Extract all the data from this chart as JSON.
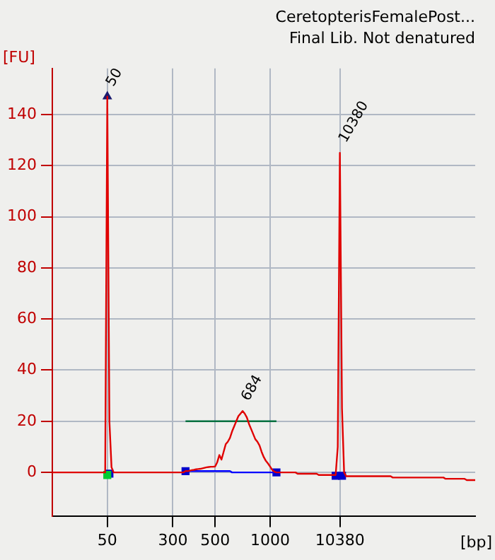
{
  "chart_data": {
    "type": "line",
    "title": "CeretopterisFemalePost...",
    "subtitle": "Final Lib. Not denatured",
    "xlabel": "[bp]",
    "ylabel": "[FU]",
    "annotations": [
      {
        "text": "50",
        "x": "50",
        "y": 147
      },
      {
        "text": "684",
        "y": 24
      },
      {
        "text": "10380",
        "x": "10380",
        "y": 125
      }
    ],
    "categories": [
      null,
      null,
      null,
      null,
      null,
      null,
      null,
      null,
      null,
      null,
      null,
      null,
      null,
      null,
      null,
      null,
      null,
      null,
      null,
      null,
      null,
      null,
      null,
      null,
      null,
      null,
      "50",
      null,
      null,
      null,
      null,
      null,
      null,
      null,
      null,
      null,
      null,
      null,
      null,
      null,
      null,
      null,
      null,
      null,
      null,
      null,
      null,
      null,
      null,
      null,
      null,
      null,
      null,
      null,
      null,
      null,
      null,
      "300",
      null,
      null,
      null,
      null,
      null,
      null,
      null,
      null,
      null,
      null,
      null,
      null,
      null,
      null,
      null,
      null,
      null,
      null,
      null,
      "500",
      null,
      null,
      null,
      null,
      null,
      null,
      null,
      null,
      null,
      null,
      null,
      null,
      null,
      null,
      null,
      null,
      null,
      null,
      null,
      null,
      null,
      null,
      null,
      null,
      null,
      "1000",
      null,
      null,
      null,
      null,
      null,
      null,
      null,
      null,
      null,
      null,
      null,
      null,
      null,
      null,
      null,
      null,
      null,
      null,
      null,
      null,
      null,
      null,
      null,
      null,
      null,
      null,
      null,
      null,
      null,
      null,
      null,
      null,
      "10380",
      null,
      null,
      null,
      null,
      null,
      null,
      null,
      null,
      null,
      null,
      null,
      null,
      null,
      null,
      null,
      null,
      null,
      null,
      null,
      null,
      null,
      null,
      null,
      null,
      null,
      null,
      null,
      null,
      null,
      null,
      null,
      null,
      null,
      null,
      null,
      null,
      null,
      null,
      null,
      null,
      null,
      null,
      null,
      null,
      null,
      null,
      null,
      null,
      null,
      null,
      null,
      null,
      null,
      null,
      null,
      null,
      null,
      null,
      null,
      null,
      null,
      null,
      null,
      null
    ],
    "ylim": [
      -17,
      158
    ],
    "yticks": [
      0,
      20,
      40,
      60,
      80,
      100,
      120,
      140
    ],
    "grid": true,
    "legend": false,
    "marker": "none",
    "line_style": "solid",
    "series": [
      {
        "color": "#e00000",
        "values": [
          0,
          0,
          0,
          0,
          0,
          0,
          0,
          0,
          0,
          0,
          0,
          0,
          0,
          0,
          0,
          0,
          0,
          0,
          0,
          0,
          0,
          0,
          0,
          0,
          0,
          0,
          147,
          20,
          2,
          0,
          0,
          0,
          0,
          0,
          0,
          0,
          0,
          0,
          0,
          0,
          0,
          0,
          0,
          0,
          0,
          0,
          0,
          0,
          0,
          0,
          0,
          0,
          0,
          0,
          0,
          0,
          0,
          0,
          0,
          0,
          0,
          0,
          0,
          0.5,
          0.5,
          0.7,
          0.9,
          1,
          1.2,
          1.3,
          1.4,
          1.6,
          1.8,
          2,
          2.1,
          2.2,
          2.2,
          2.3,
          4,
          6.8,
          5,
          8,
          11,
          12,
          13.5,
          16,
          18,
          20,
          22,
          23,
          24,
          23,
          21.5,
          19,
          17,
          15,
          13,
          12,
          10.5,
          8,
          6,
          4.5,
          3.5,
          2.3,
          1,
          0.3,
          0,
          0,
          0,
          0,
          0,
          0,
          0,
          0,
          0,
          0,
          -0.5,
          -0.5,
          -0.5,
          -0.5,
          -0.5,
          -0.5,
          -0.5,
          -0.5,
          -0.5,
          -0.5,
          -1,
          -1,
          -1,
          -1,
          -1,
          -1,
          -1,
          -1,
          -1,
          10,
          125,
          25,
          0,
          -1.5,
          -1.5,
          -1.5,
          -1.5,
          -1.5,
          -1.5,
          -1.5,
          -1.5,
          -1.5,
          -1.5,
          -1.5,
          -1.5,
          -1.5,
          -1.5,
          -1.5,
          -1.5,
          -1.5,
          -1.5,
          -1.5,
          -1.5,
          -1.5,
          -1.5,
          -2,
          -2,
          -2,
          -2,
          -2,
          -2,
          -2,
          -2,
          -2,
          -2,
          -2,
          -2,
          -2,
          -2,
          -2,
          -2,
          -2,
          -2,
          -2,
          -2,
          -2,
          -2,
          -2,
          -2,
          -2,
          -2.5,
          -2.5,
          -2.5,
          -2.5,
          -2.5,
          -2.5,
          -2.5,
          -2.5,
          -2.5,
          -2.5,
          -3,
          -3,
          -3,
          -3,
          -3
        ]
      },
      {
        "color": "#007040",
        "values": [
          null,
          null,
          null,
          null,
          null,
          null,
          null,
          null,
          null,
          null,
          null,
          null,
          null,
          null,
          null,
          null,
          null,
          null,
          null,
          null,
          null,
          null,
          null,
          null,
          null,
          null,
          null,
          null,
          null,
          null,
          null,
          null,
          null,
          null,
          null,
          null,
          null,
          null,
          null,
          null,
          null,
          null,
          null,
          null,
          null,
          null,
          null,
          null,
          null,
          null,
          null,
          null,
          null,
          null,
          null,
          null,
          null,
          null,
          null,
          null,
          null,
          null,
          null,
          20,
          20,
          20,
          20,
          20,
          20,
          20,
          20,
          20,
          20,
          20,
          20,
          20,
          20,
          20,
          20,
          20,
          20,
          20,
          20,
          20,
          20,
          20,
          20,
          20,
          20,
          20,
          20,
          20,
          20,
          20,
          20,
          20,
          20,
          20,
          20,
          20,
          20,
          20,
          20,
          20,
          20,
          20,
          20,
          null,
          null,
          null,
          null,
          null,
          null,
          null,
          null,
          null,
          null,
          null,
          null,
          null,
          null,
          null,
          null,
          null,
          null,
          null,
          null,
          null,
          null,
          null,
          null,
          null,
          null,
          null,
          null,
          null,
          null,
          null,
          null,
          null,
          null,
          null,
          null,
          null,
          null,
          null,
          null,
          null,
          null,
          null,
          null,
          null,
          null,
          null,
          null,
          null,
          null,
          null,
          null,
          null,
          null,
          null,
          null,
          null,
          null,
          null,
          null,
          null,
          null,
          null,
          null,
          null,
          null,
          null,
          null,
          null,
          null,
          null,
          null,
          null,
          null,
          null,
          null,
          null,
          null,
          null,
          null,
          null,
          null,
          null,
          null,
          null,
          null,
          null,
          null,
          null,
          null,
          null,
          null,
          null,
          null
        ]
      },
      {
        "color": "#0000ff",
        "values": [
          null,
          null,
          null,
          null,
          null,
          null,
          null,
          null,
          null,
          null,
          null,
          null,
          null,
          null,
          null,
          null,
          null,
          null,
          null,
          null,
          null,
          null,
          null,
          null,
          null,
          null,
          null,
          null,
          null,
          null,
          null,
          null,
          null,
          null,
          null,
          null,
          null,
          null,
          null,
          null,
          null,
          null,
          null,
          null,
          null,
          null,
          null,
          null,
          null,
          null,
          null,
          null,
          null,
          null,
          null,
          null,
          null,
          null,
          null,
          null,
          null,
          null,
          null,
          0.5,
          0.5,
          0.5,
          0.5,
          0.5,
          0.5,
          0.5,
          0.5,
          0.5,
          0.5,
          0.5,
          0.5,
          0.5,
          0.5,
          0.5,
          0.5,
          0.5,
          0.5,
          0.5,
          0.5,
          0.5,
          0.5,
          0,
          0,
          0,
          0,
          0,
          0,
          0,
          0,
          0,
          0,
          0,
          0,
          0,
          0,
          0,
          0,
          0,
          0,
          0,
          0,
          0,
          0,
          null,
          null,
          null,
          null,
          null,
          null,
          null,
          null,
          null,
          null,
          null,
          null,
          null,
          null,
          null,
          null,
          null,
          null,
          null,
          null,
          null,
          null,
          null,
          null,
          null,
          null,
          null,
          null,
          null,
          null,
          null,
          null,
          null,
          null,
          null,
          null,
          null,
          null,
          null,
          null,
          null,
          null,
          null,
          null,
          null,
          null,
          null,
          null,
          null,
          null,
          null,
          null,
          null,
          null,
          null,
          null,
          null,
          null,
          null,
          null,
          null,
          null,
          null,
          null,
          null,
          null,
          null,
          null,
          null,
          null,
          null,
          null,
          null,
          null,
          null,
          null,
          null,
          null,
          null,
          null,
          null,
          null,
          null,
          null,
          null,
          null,
          null,
          null,
          null,
          null,
          null,
          null,
          null,
          null
        ]
      },
      {
        "type": "scatter",
        "marker": "square",
        "color": "#00cc33",
        "values": [
          null,
          null,
          null,
          null,
          null,
          null,
          null,
          null,
          null,
          null,
          null,
          null,
          null,
          null,
          null,
          null,
          null,
          null,
          null,
          null,
          null,
          null,
          null,
          null,
          null,
          null,
          -1,
          null,
          null,
          null,
          null,
          null,
          null,
          null,
          null,
          null,
          null,
          null,
          null,
          null,
          null,
          null,
          null,
          null,
          null,
          null,
          null,
          null,
          null,
          null,
          null,
          null,
          null,
          null,
          null,
          null,
          null,
          null,
          null,
          null,
          null,
          null,
          null,
          null,
          null,
          null,
          null,
          null,
          null,
          null,
          null,
          null,
          null,
          null,
          null,
          null,
          null,
          null,
          null,
          null,
          null,
          null,
          null,
          null,
          null,
          null,
          null,
          null,
          null,
          null,
          null,
          null,
          null,
          null,
          null,
          null,
          null,
          null,
          null,
          null,
          null,
          null,
          null,
          null,
          null,
          null,
          null,
          null,
          null,
          null,
          null,
          null,
          null,
          null,
          null,
          null,
          null,
          null,
          null,
          null,
          null,
          null,
          null,
          null,
          null,
          null,
          null,
          null,
          null,
          null,
          null,
          null,
          null,
          null,
          null,
          null,
          null,
          null,
          null,
          null,
          null,
          null,
          null,
          null,
          null,
          null,
          null,
          null,
          null,
          null,
          null,
          null,
          null,
          null,
          null,
          null,
          null,
          null,
          null,
          null,
          null,
          null,
          null,
          null,
          null,
          null,
          null,
          null,
          null,
          null,
          null,
          null,
          null,
          null,
          null,
          null,
          null,
          null,
          null,
          null,
          null,
          null,
          null,
          null,
          null,
          null,
          null,
          null,
          null,
          null,
          null,
          null,
          null,
          null,
          null,
          null,
          null,
          null,
          null,
          null,
          null
        ]
      },
      {
        "type": "scatter",
        "marker": "square",
        "color": "#0000cc",
        "values": [
          null,
          null,
          null,
          null,
          null,
          null,
          null,
          null,
          null,
          null,
          null,
          null,
          null,
          null,
          null,
          null,
          null,
          null,
          null,
          null,
          null,
          null,
          null,
          null,
          null,
          null,
          null,
          -0.5,
          null,
          null,
          null,
          null,
          null,
          null,
          null,
          null,
          null,
          null,
          null,
          null,
          null,
          null,
          null,
          null,
          null,
          null,
          null,
          null,
          null,
          null,
          null,
          null,
          null,
          null,
          null,
          null,
          null,
          null,
          null,
          null,
          null,
          null,
          null,
          0.5,
          null,
          null,
          null,
          null,
          null,
          null,
          null,
          null,
          null,
          null,
          null,
          null,
          null,
          null,
          null,
          null,
          null,
          null,
          null,
          null,
          null,
          null,
          null,
          null,
          null,
          null,
          null,
          null,
          null,
          null,
          null,
          null,
          null,
          null,
          null,
          null,
          null,
          null,
          null,
          null,
          null,
          null,
          0,
          null,
          null,
          null,
          null,
          null,
          null,
          null,
          null,
          null,
          null,
          null,
          null,
          null,
          null,
          null,
          null,
          null,
          null,
          null,
          null,
          null,
          null,
          null,
          null,
          null,
          null,
          null,
          -1.3,
          null,
          null,
          -1.3,
          null,
          null,
          null,
          null,
          null,
          null,
          null,
          null,
          null,
          null,
          null,
          null,
          null,
          null,
          null,
          null,
          null,
          null,
          null,
          null,
          null,
          null,
          null,
          null,
          null,
          null,
          null,
          null,
          null,
          null,
          null,
          null,
          null,
          null,
          null,
          null,
          null,
          null,
          null,
          null,
          null,
          null,
          null,
          null,
          null,
          null,
          null,
          null,
          null,
          null,
          null,
          null,
          null,
          null,
          null,
          null,
          null,
          null,
          null,
          null,
          null,
          null,
          null
        ]
      },
      {
        "type": "scatter",
        "marker": "triangle",
        "color": "#1a1a6e",
        "values": [
          null,
          null,
          null,
          null,
          null,
          null,
          null,
          null,
          null,
          null,
          null,
          null,
          null,
          null,
          null,
          null,
          null,
          null,
          null,
          null,
          null,
          null,
          null,
          null,
          null,
          null,
          147,
          null,
          null,
          null,
          null,
          null,
          null,
          null,
          null,
          null,
          null,
          null,
          null,
          null,
          null,
          null,
          null,
          null,
          null,
          null,
          null,
          null,
          null,
          null,
          null,
          null,
          null,
          null,
          null,
          null,
          null,
          null,
          null,
          null,
          null,
          null,
          null,
          null,
          null,
          null,
          null,
          null,
          null,
          null,
          null,
          null,
          null,
          null,
          null,
          null,
          null,
          null,
          null,
          null,
          null,
          null,
          null,
          null,
          null,
          null,
          null,
          null,
          null,
          null,
          null,
          null,
          null,
          null,
          null,
          null,
          null,
          null,
          null,
          null,
          null,
          null,
          null,
          null,
          null,
          null,
          null,
          null,
          null,
          null,
          null,
          null,
          null,
          null,
          null,
          null,
          null,
          null,
          null,
          null,
          null,
          null,
          null,
          null,
          null,
          null,
          null,
          null,
          null,
          null,
          null,
          null,
          null,
          null,
          null,
          null,
          null,
          null,
          null,
          null,
          null,
          null,
          null,
          null,
          null,
          null,
          null,
          null,
          null,
          null,
          null,
          null,
          null,
          null,
          null,
          null,
          null,
          null,
          null,
          null,
          null,
          null,
          null,
          null,
          null,
          null,
          null,
          null,
          null,
          null,
          null,
          null,
          null,
          null,
          null,
          null,
          null,
          null,
          null,
          null,
          null,
          null,
          null,
          null,
          null,
          null,
          null,
          null,
          null,
          null,
          null,
          null,
          null,
          null,
          null,
          null,
          null,
          null,
          null,
          null,
          null
        ]
      }
    ]
  }
}
